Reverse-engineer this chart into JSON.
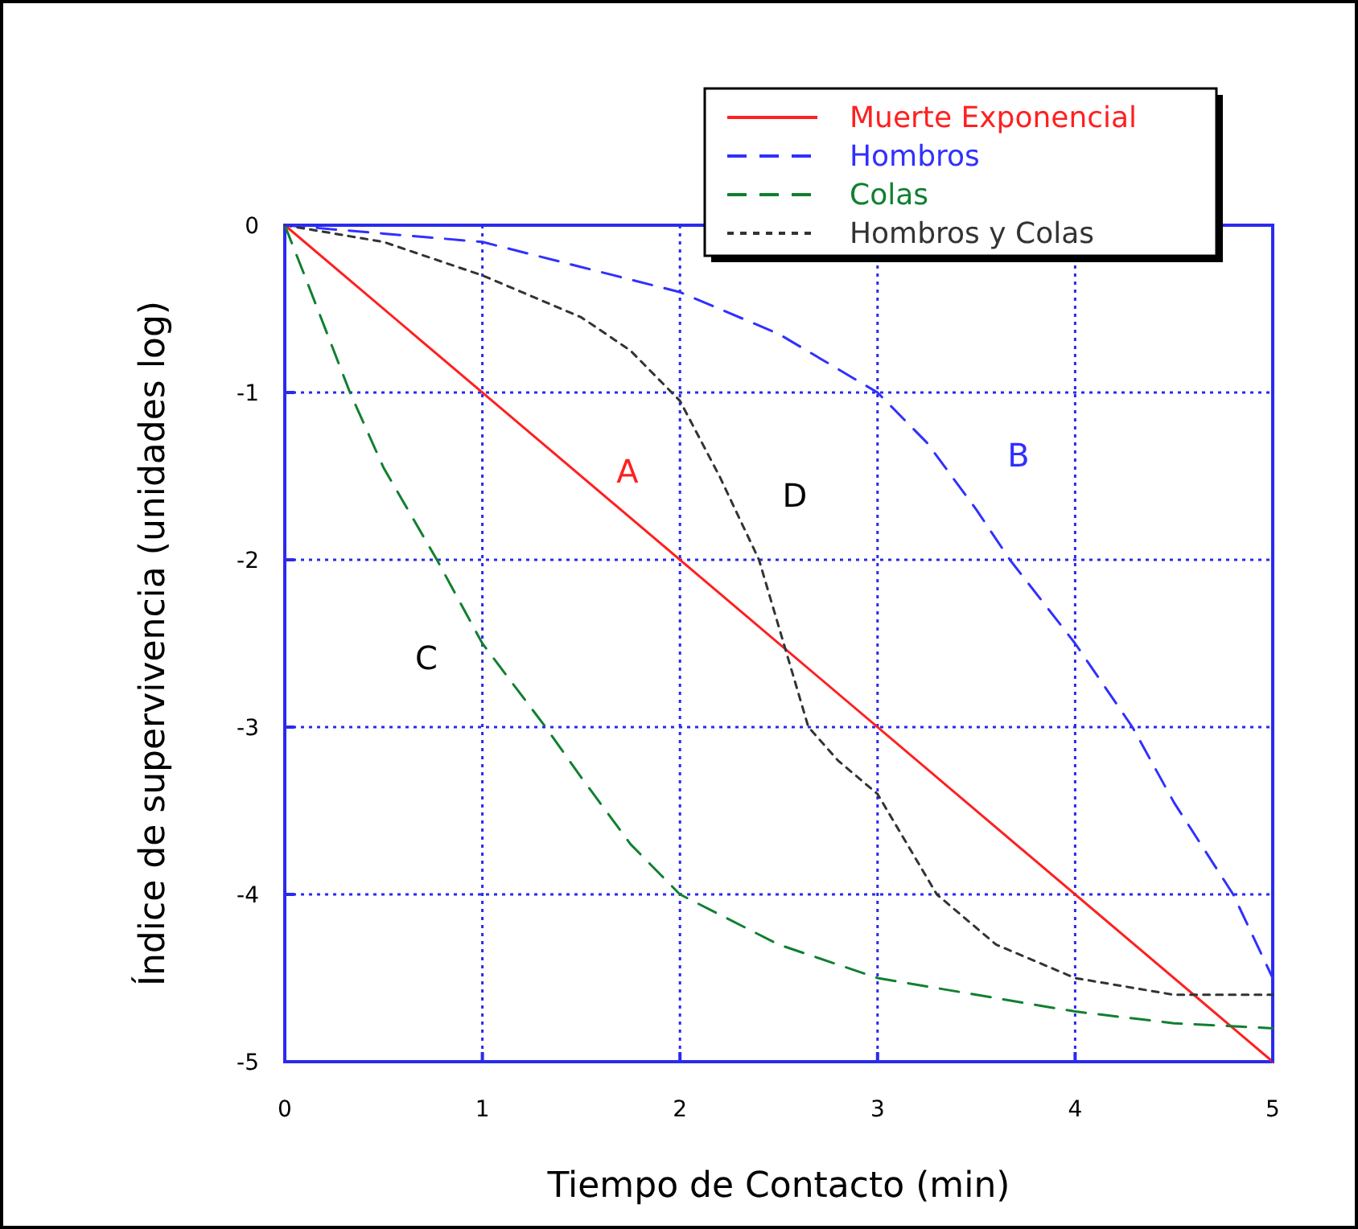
{
  "chart_data": {
    "type": "line",
    "xlabel": "Tiempo de Contacto (min)",
    "ylabel": "Índice de supervivencia (unidades log)",
    "xlim": [
      0,
      5
    ],
    "ylim": [
      -5,
      0
    ],
    "xticks": [
      0,
      1,
      2,
      3,
      4,
      5
    ],
    "yticks": [
      0,
      -1,
      -2,
      -3,
      -4,
      -5
    ],
    "grid": true,
    "legend": "top right",
    "marker": "none",
    "series": [
      {
        "name": "Muerte Exponencial",
        "color": "#ff2020",
        "line_style": "solid",
        "x": [
          0,
          5
        ],
        "values": [
          0,
          -5
        ]
      },
      {
        "name": "Hombros",
        "color": "#3030ff",
        "line_style": "dashed",
        "x": [
          0,
          0.5,
          1,
          1.5,
          2,
          2.5,
          3,
          3.25,
          3.5,
          3.67,
          4,
          4.29,
          4.5,
          4.8,
          5
        ],
        "values": [
          0,
          -0.05,
          -0.1,
          -0.25,
          -0.4,
          -0.65,
          -1,
          -1.3,
          -1.7,
          -2,
          -2.5,
          -3,
          -3.45,
          -4,
          -4.5
        ]
      },
      {
        "name": "Colas",
        "color": "#108030",
        "line_style": "dashed",
        "x": [
          0,
          0.1,
          0.33,
          0.5,
          0.77,
          1,
          1.32,
          1.5,
          1.75,
          2,
          2.5,
          3,
          3.5,
          4,
          4.5,
          5
        ],
        "values": [
          0,
          -0.3,
          -1,
          -1.45,
          -2,
          -2.5,
          -3,
          -3.3,
          -3.7,
          -4,
          -4.3,
          -4.5,
          -4.6,
          -4.7,
          -4.77,
          -4.8
        ]
      },
      {
        "name": "Hombros y Colas",
        "color": "#333333",
        "line_style": "dotted",
        "x": [
          0,
          0.5,
          1,
          1.5,
          1.75,
          2,
          2.2,
          2.4,
          2.55,
          2.65,
          2.8,
          3,
          3.3,
          3.6,
          4,
          4.5,
          5
        ],
        "values": [
          0,
          -0.1,
          -0.3,
          -0.55,
          -0.75,
          -1.05,
          -1.5,
          -2,
          -2.6,
          -3,
          -3.2,
          -3.4,
          -4,
          -4.3,
          -4.5,
          -4.6,
          -4.6
        ]
      }
    ],
    "annotations": [
      "A",
      "B",
      "C",
      "D"
    ]
  }
}
